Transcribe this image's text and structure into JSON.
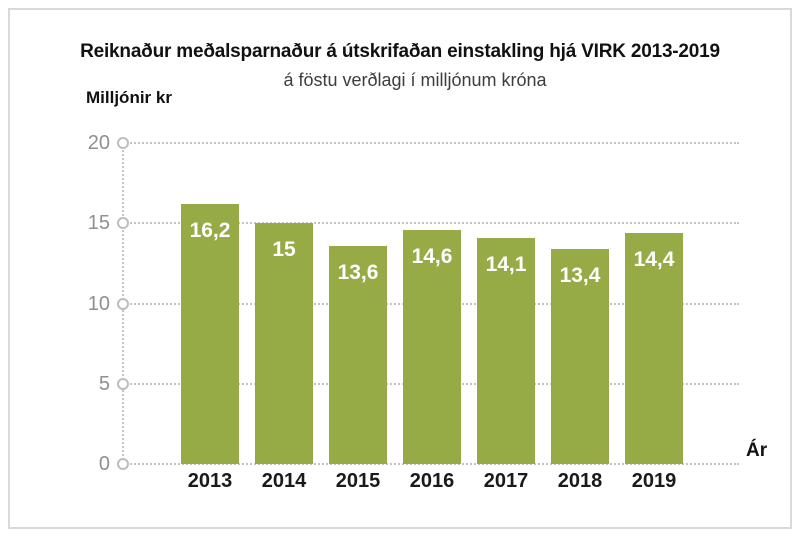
{
  "chart_data": {
    "type": "bar",
    "title": "Reiknaður meðalsparnaður á útskrifaðan einstakling hjá VIRK 2013-2019",
    "subtitle": "á föstu verðlagi í milljónum króna",
    "categories": [
      "2013",
      "2014",
      "2015",
      "2016",
      "2017",
      "2018",
      "2019"
    ],
    "values": [
      16.2,
      15,
      13.6,
      14.6,
      14.1,
      13.4,
      14.4
    ],
    "value_labels": [
      "16,2",
      "15",
      "13,6",
      "14,6",
      "14,1",
      "13,4",
      "14,4"
    ],
    "xlabel": "Ár",
    "ylabel": "Milljónir kr",
    "y_ticks": [
      0,
      5,
      10,
      15,
      20
    ],
    "ylim": [
      0,
      20
    ],
    "grid": "dotted horizontal gridlines with open-circle tick markers on y-axis",
    "legend": "none",
    "colors": {
      "bar": "#96ab45",
      "grid": "#c4c4c4",
      "tick_marker": "#bdbdbd",
      "tick_label": "#8f8f8f",
      "title": "#111111",
      "subtitle": "#3d3d3d",
      "value_label": "#ffffff",
      "frame_border": "#d9d9d9"
    }
  }
}
